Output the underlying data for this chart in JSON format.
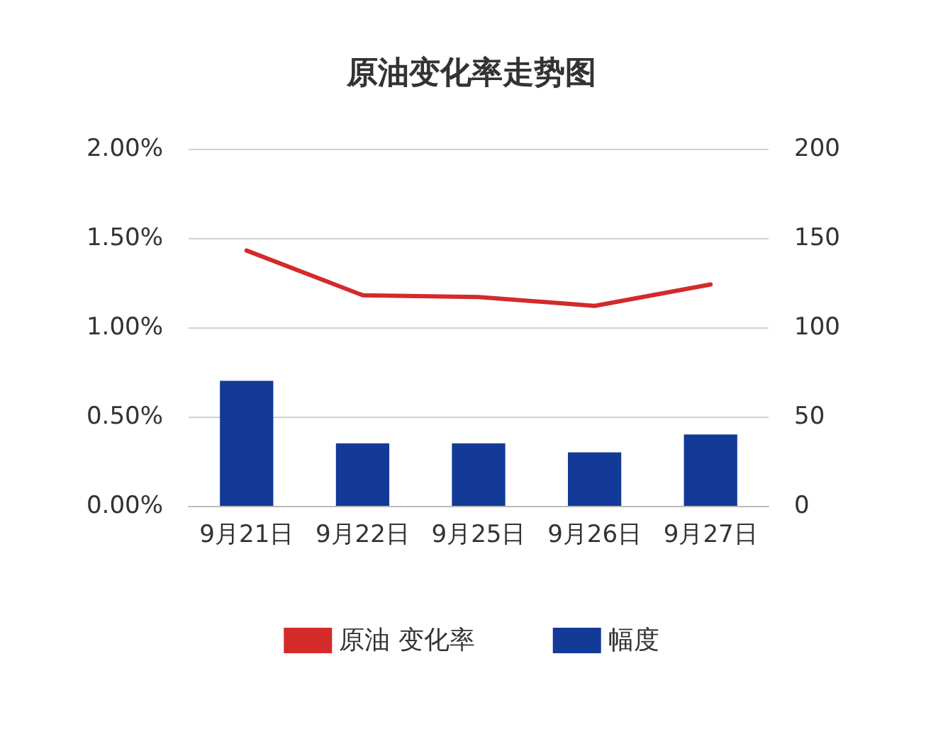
{
  "chart_data": {
    "type": "bar",
    "title": "原油变化率走势图",
    "categories": [
      "9月21日",
      "9月22日",
      "9月25日",
      "9月26日",
      "9月27日"
    ],
    "series": [
      {
        "name": "原油 变化率",
        "type": "line",
        "color": "#d42a2a",
        "values": [
          1.43,
          1.18,
          1.17,
          1.12,
          1.24
        ]
      },
      {
        "name": "幅度",
        "color": "#123a96",
        "axis": "y2",
        "values": [
          70,
          35,
          35,
          30,
          40
        ]
      }
    ],
    "ylim": [
      0,
      2
    ],
    "yticks": [
      {
        "value": 0,
        "label": "0.00%"
      },
      {
        "value": 0.5,
        "label": "0.50%"
      },
      {
        "value": 1,
        "label": "1.00%"
      },
      {
        "value": 1.5,
        "label": "1.50%"
      },
      {
        "value": 2,
        "label": "2.00%"
      }
    ],
    "y2lim": [
      0,
      200
    ],
    "y2ticks": [
      0,
      50,
      100,
      150,
      200
    ],
    "grid": "y",
    "legend": "bottom",
    "marker": "none"
  }
}
